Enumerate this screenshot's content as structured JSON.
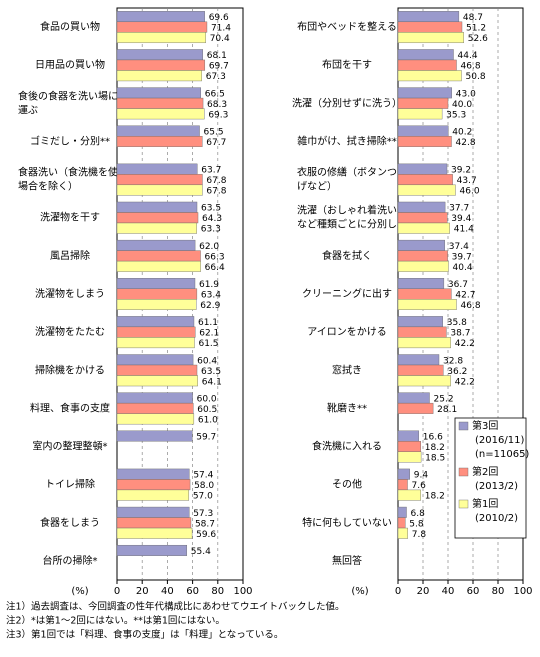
{
  "chart_data": [
    {
      "type": "bar",
      "orientation": "horizontal",
      "categories": [
        "食品の買い物",
        "日用品の買い物",
        "食後の食器を洗い場に\n運ぶ",
        "ゴミだし・分別**",
        "食器洗い（食洗機を使う\n場合を除く）",
        "洗濯物を干す",
        "風呂掃除",
        "洗濯物をしまう",
        "洗濯物をたたむ",
        "掃除機をかける",
        "料理、食事の支度",
        "室内の整理整頓*",
        "トイレ掃除",
        "食器をしまう",
        "台所の掃除*"
      ],
      "series": [
        {
          "color": "#9a9acc",
          "values": [
            69.6,
            68.1,
            66.5,
            65.5,
            63.7,
            63.5,
            62.0,
            61.9,
            61.1,
            60.4,
            60.0,
            59.7,
            57.4,
            57.3,
            55.4
          ],
          "value_labels": [
            "69.6",
            "68.1",
            "66.5",
            "65.5",
            "63.7",
            "63.5",
            "62.0",
            "61.9",
            "61.1",
            "60.4",
            "60.0",
            "59.7",
            "57.4",
            "57.3",
            "55.4"
          ]
        },
        {
          "color": "#ff8f7f",
          "values": [
            71.4,
            69.7,
            68.3,
            67.7,
            67.8,
            64.3,
            66.3,
            63.4,
            62.1,
            63.5,
            60.5,
            null,
            58.0,
            58.7,
            null
          ],
          "value_labels": [
            "71.4",
            "69.7",
            "68.3",
            "67.7",
            "67.8",
            "64.3",
            "66.3",
            "63.4",
            "62.1",
            "63.5",
            "60.5",
            null,
            "58.0",
            "58.7",
            null
          ]
        },
        {
          "color": "#ffff99",
          "values": [
            70.4,
            67.3,
            69.3,
            null,
            67.8,
            63.3,
            66.4,
            62.9,
            61.5,
            64.1,
            61.0,
            null,
            57.0,
            59.6,
            null
          ],
          "value_labels": [
            "70.4",
            "67.3",
            "69.3",
            null,
            "67.8",
            "63.3",
            "66.4",
            "62.9",
            "61.5",
            "64.1",
            "61.0",
            null,
            "57.0",
            "59.6",
            null
          ]
        }
      ],
      "xlim": [
        0,
        100
      ],
      "xticks": [
        0,
        20,
        40,
        60,
        80,
        100
      ],
      "x_unit": "(%)",
      "grid": true
    },
    {
      "type": "bar",
      "orientation": "horizontal",
      "categories": [
        "布団やベッドを整える",
        "布団を干す",
        "洗濯（分別せずに洗う）",
        "雑巾がけ、拭き掃除**",
        "衣服の修繕（ボタンつけや裾上\nげなど）",
        "洗濯（おしゃれ着洗いや手洗い\nなど種類ごとに分別して洗う）",
        "食器を拭く",
        "クリーニングに出す",
        "アイロンをかける",
        "窓拭き",
        "靴磨き**",
        "食洗機に入れる",
        "その他",
        "特に何もしていない",
        "無回答"
      ],
      "series": [
        {
          "name": "第3回",
          "period": "(2016/11)",
          "sample": "(n=11065)",
          "color": "#9a9acc",
          "values": [
            48.7,
            44.4,
            43.0,
            40.2,
            39.2,
            37.7,
            37.4,
            36.7,
            35.8,
            32.8,
            25.2,
            16.6,
            9.4,
            6.8,
            null
          ],
          "value_labels": [
            "48.7",
            "44.4",
            "43.0",
            "40.2",
            "39.2",
            "37.7",
            "37.4",
            "36.7",
            "35.8",
            "32.8",
            "25.2",
            "16.6",
            "9.4",
            "6.8",
            null
          ]
        },
        {
          "name": "第2回",
          "period": "(2013/2)",
          "color": "#ff8f7f",
          "values": [
            51.2,
            46.8,
            40.0,
            42.8,
            43.7,
            39.4,
            39.7,
            42.7,
            38.7,
            36.2,
            28.1,
            18.2,
            7.6,
            5.8,
            null
          ],
          "value_labels": [
            "51.2",
            "46.8",
            "40.0",
            "42.8",
            "43.7",
            "39.4",
            "39.7",
            "42.7",
            "38.7",
            "36.2",
            "28.1",
            "18.2",
            "7.6",
            "5.8",
            null
          ]
        },
        {
          "name": "第1回",
          "period": "(2010/2)",
          "color": "#ffff99",
          "values": [
            52.6,
            50.8,
            35.3,
            null,
            46.0,
            41.4,
            40.4,
            46.8,
            42.2,
            42.2,
            null,
            18.5,
            18.2,
            7.8,
            null
          ],
          "value_labels": [
            "52.6",
            "50.8",
            "35.3",
            null,
            "46.0",
            "41.4",
            "40.4",
            "46.8",
            "42.2",
            "42.2",
            null,
            "18.5",
            "18.2",
            "7.8",
            null
          ]
        }
      ],
      "xlim": [
        0,
        100
      ],
      "xticks": [
        0,
        20,
        40,
        60,
        80,
        100
      ],
      "x_unit": "(%)",
      "grid": true,
      "legend": "lower-right"
    }
  ],
  "notes": [
    "注1）過去調査は、今回調査の性年代構成比にあわせてウエイトバックした値。",
    "注2）*は第1～2回にはない。**は第1回にはない。",
    "注3）第1回では「料理、食事の支度」は「料理」となっている。"
  ]
}
